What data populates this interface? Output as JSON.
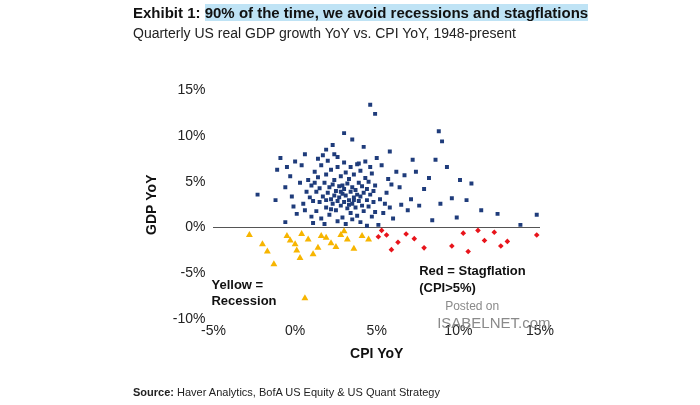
{
  "chart_data": {
    "type": "scatter",
    "title": "Exhibit 1: 90% of the time, we avoid recessions and stagflations",
    "subtitle": "Quarterly US real GDP growth YoY vs. CPI YoY, 1948-present",
    "x_label": "CPI YoY",
    "y_label": "GDP YoY",
    "source": "Source: Haver Analytics, BofA US Equity & US Quant Strategy",
    "annotations": [
      {
        "text": [
          "Yellow =",
          "Recession"
        ]
      },
      {
        "text": [
          "Red = Stagflation",
          "(CPI>5%)"
        ]
      },
      {
        "text": [
          "Posted on",
          "ISABELNET.com"
        ]
      }
    ],
    "xlim": [
      -5,
      15
    ],
    "xticks": [
      {
        "value": -5,
        "label": "-5%"
      },
      {
        "value": 0,
        "label": "0%"
      },
      {
        "value": 5,
        "label": "5%"
      },
      {
        "value": 10,
        "label": "10%"
      },
      {
        "value": 15,
        "label": "15%"
      }
    ],
    "ylim": [
      -10,
      15
    ],
    "yticks": [
      {
        "value": -10,
        "label": "-10%"
      },
      {
        "value": -5,
        "label": "-5%"
      },
      {
        "value": 0,
        "label": "0%"
      },
      {
        "value": 5,
        "label": "5%"
      },
      {
        "value": 10,
        "label": "10%"
      },
      {
        "value": 15,
        "label": "15%"
      }
    ],
    "grid": false,
    "series": [
      {
        "color": "#1f3c7b",
        "marker": "square",
        "x": [
          4.6,
          4.9,
          3.0,
          3.5,
          8.8,
          9.0,
          2.3,
          0.6,
          1.9,
          4.2,
          2.6,
          5.8,
          -0.9,
          -1.1,
          -0.5,
          0.0,
          0.4,
          -0.3,
          -2.3,
          -1.2,
          -0.6,
          -0.1,
          0.3,
          0.1,
          -0.6,
          14.8,
          12.4,
          13.8,
          11.4,
          10.8,
          10.1,
          9.3,
          8.6,
          9.6,
          8.9,
          10.5,
          8.2,
          7.9,
          7.4,
          7.1,
          6.7,
          6.2,
          6.5,
          5.9,
          5.6,
          5.4,
          6.0,
          5.1,
          5.7,
          6.9,
          7.6,
          9.9,
          8.4,
          5.8,
          6.4,
          7.2,
          5.3,
          5.0,
          4.3,
          3.8,
          4.7,
          4.9,
          0.8,
          1.0,
          1.2,
          1.3,
          1.4,
          1.5,
          1.5,
          1.6,
          1.7,
          1.8,
          1.9,
          1.9,
          2.0,
          2.1,
          2.1,
          2.2,
          2.2,
          2.3,
          2.3,
          2.4,
          2.4,
          2.5,
          2.5,
          2.6,
          2.6,
          2.7,
          2.7,
          2.8,
          2.8,
          2.9,
          2.9,
          3.0,
          3.0,
          3.1,
          3.1,
          3.2,
          3.2,
          3.3,
          3.3,
          3.4,
          3.4,
          3.5,
          3.5,
          3.6,
          3.6,
          3.7,
          3.7,
          3.8,
          3.8,
          3.9,
          3.9,
          4.0,
          4.0,
          4.1,
          4.1,
          4.2,
          4.2,
          4.3,
          4.4,
          4.4,
          4.5,
          4.6,
          4.7,
          4.8,
          4.8,
          1.1,
          1.3,
          0.9,
          1.6,
          1.8,
          2.0,
          1.4,
          0.7,
          0.5,
          1.0,
          2.6,
          3.1,
          3.5,
          4.0,
          4.4,
          3.9,
          3.0,
          2.4,
          1.7,
          3.4,
          4.6,
          1.2,
          1.9,
          2.8,
          3.6,
          2.9,
          2.2,
          3.3,
          4.5,
          0.6,
          -0.2,
          1.1,
          5.2,
          5.5,
          4.9
        ],
        "values": [
          13.4,
          12.4,
          10.3,
          9.6,
          10.5,
          9.4,
          9.0,
          8.0,
          8.5,
          8.8,
          7.7,
          8.3,
          7.6,
          6.3,
          6.6,
          7.2,
          6.8,
          5.6,
          3.6,
          3.0,
          4.4,
          2.3,
          4.9,
          1.5,
          0.6,
          1.4,
          1.5,
          0.3,
          1.9,
          4.8,
          5.2,
          6.6,
          7.4,
          3.2,
          2.6,
          3.0,
          5.4,
          4.2,
          6.1,
          3.1,
          5.7,
          6.1,
          2.5,
          4.7,
          3.8,
          1.6,
          1.0,
          0.3,
          5.3,
          1.9,
          2.4,
          1.1,
          0.8,
          2.2,
          4.4,
          7.4,
          6.8,
          7.6,
          7.2,
          6.9,
          5.9,
          4.6,
          5.2,
          4.6,
          6.1,
          3.9,
          5.5,
          2.8,
          4.3,
          6.8,
          3.4,
          4.9,
          2.2,
          5.8,
          3.8,
          4.4,
          1.4,
          3.1,
          6.3,
          2.6,
          4.7,
          3.5,
          5.2,
          1.9,
          4.0,
          2.9,
          6.6,
          3.3,
          4.5,
          2.4,
          5.6,
          3.7,
          1.1,
          4.2,
          2.8,
          3.5,
          6.0,
          2.1,
          4.8,
          3.0,
          5.3,
          3.9,
          1.6,
          4.4,
          2.6,
          3.3,
          5.8,
          2.2,
          4.1,
          3.6,
          1.3,
          4.9,
          2.9,
          3.4,
          6.2,
          2.4,
          4.5,
          3.8,
          1.8,
          5.4,
          3.0,
          4.2,
          2.3,
          3.6,
          1.2,
          2.8,
          4.0,
          2.9,
          1.8,
          3.3,
          1.0,
          0.4,
          7.3,
          7.5,
          3.9,
          2.6,
          1.2,
          0.7,
          0.4,
          0.9,
          0.6,
          0.2,
          7.0,
          7.1,
          8.0,
          7.9,
          6.6,
          6.6,
          4.9,
          3.0,
          3.9,
          3.0,
          4.6,
          2.0,
          2.5,
          5.0,
          1.9,
          3.4,
          0.5,
          3.1,
          2.6,
          1.7
        ]
      },
      {
        "color": "#f7b500",
        "marker": "triangle",
        "x": [
          -2.8,
          -2.0,
          -1.7,
          -1.3,
          -0.5,
          -0.3,
          0.0,
          0.1,
          0.3,
          0.4,
          0.6,
          0.8,
          1.1,
          1.4,
          1.6,
          1.9,
          2.2,
          2.5,
          2.8,
          3.2,
          3.6,
          4.1,
          4.5,
          3.0
        ],
        "values": [
          -0.8,
          -1.8,
          -2.6,
          -4.0,
          -0.9,
          -1.4,
          -1.8,
          -2.5,
          -3.3,
          -0.7,
          -7.7,
          -1.3,
          -2.9,
          -2.2,
          -0.9,
          -1.1,
          -1.7,
          -2.1,
          -0.8,
          -1.3,
          -2.3,
          -0.9,
          -1.3,
          -0.4
        ]
      },
      {
        "color": "#e8141b",
        "marker": "diamond",
        "x": [
          5.3,
          5.6,
          5.9,
          6.3,
          6.8,
          7.3,
          7.9,
          9.6,
          10.3,
          10.6,
          11.2,
          11.6,
          12.2,
          12.6,
          13.0,
          14.8,
          5.1
        ],
        "values": [
          -0.3,
          -0.8,
          -2.4,
          -1.6,
          -0.7,
          -1.2,
          -2.2,
          -2.0,
          -0.6,
          -2.6,
          -0.3,
          -1.4,
          -0.5,
          -2.0,
          -1.5,
          -0.8,
          -1.0
        ]
      }
    ]
  }
}
